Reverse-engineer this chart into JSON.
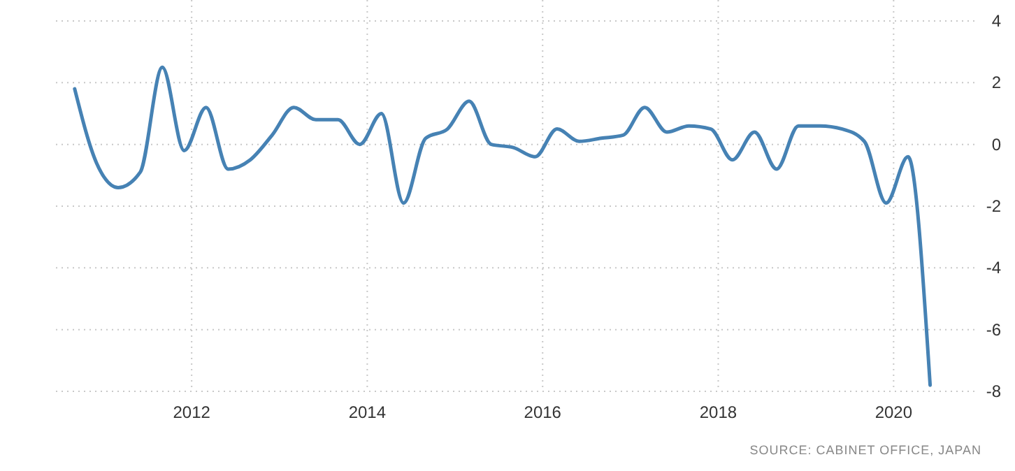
{
  "chart_data": {
    "type": "line",
    "x": [
      "2010-09",
      "2010-12",
      "2011-03",
      "2011-06",
      "2011-09",
      "2011-12",
      "2012-03",
      "2012-06",
      "2012-09",
      "2012-12",
      "2013-03",
      "2013-06",
      "2013-09",
      "2013-12",
      "2014-03",
      "2014-06",
      "2014-09",
      "2014-12",
      "2015-03",
      "2015-06",
      "2015-09",
      "2015-12",
      "2016-03",
      "2016-06",
      "2016-09",
      "2016-12",
      "2017-03",
      "2017-06",
      "2017-09",
      "2017-12",
      "2018-03",
      "2018-06",
      "2018-09",
      "2018-12",
      "2019-03",
      "2019-06",
      "2019-09",
      "2019-12",
      "2020-03",
      "2020-06"
    ],
    "series": [
      {
        "color": "#4682b4",
        "values": [
          1.8,
          -0.6,
          -1.4,
          -0.9,
          2.5,
          -0.2,
          1.2,
          -0.8,
          -0.5,
          0.3,
          1.2,
          0.8,
          0.8,
          0.0,
          1.0,
          -1.9,
          0.2,
          0.5,
          1.4,
          0.0,
          -0.1,
          -0.4,
          0.5,
          0.1,
          0.2,
          0.3,
          1.2,
          0.4,
          0.6,
          0.5,
          -0.5,
          0.4,
          -0.8,
          0.6,
          0.6,
          0.5,
          0.1,
          -1.9,
          -0.4,
          -7.8
        ]
      }
    ],
    "xlim": [
      "2010-06-15",
      "2020-12-20"
    ],
    "xticks": [
      {
        "value": "2012",
        "label": "2012"
      },
      {
        "value": "2014",
        "label": "2014"
      },
      {
        "value": "2016",
        "label": "2016"
      },
      {
        "value": "2018",
        "label": "2018"
      },
      {
        "value": "2020",
        "label": "2020"
      }
    ],
    "ylim": [
      -8,
      4
    ],
    "yticks": [
      -8,
      -6,
      -4,
      -2,
      0,
      2,
      4
    ],
    "grid": true,
    "marker": "none",
    "line_style": "solid",
    "annotations": [
      "SOURCE: CABINET OFFICE, JAPAN"
    ]
  }
}
